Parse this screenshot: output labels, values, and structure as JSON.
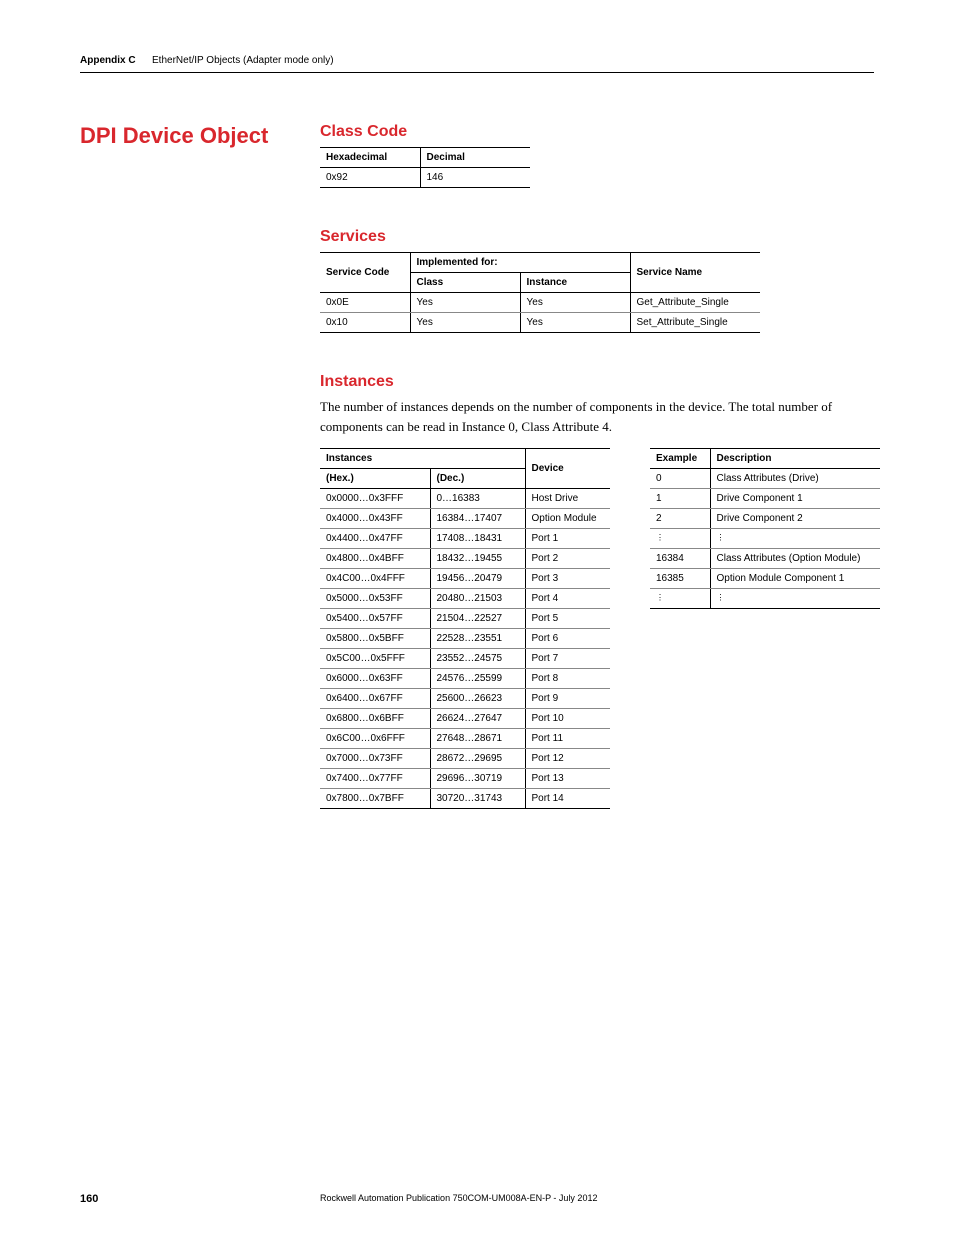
{
  "header": {
    "appendix_label": "Appendix C",
    "appendix_title": "EtherNet/IP Objects (Adapter mode only)"
  },
  "title": "DPI Device Object",
  "class_code": {
    "heading": "Class Code",
    "headers": [
      "Hexadecimal",
      "Decimal"
    ],
    "row": [
      "0x92",
      "146"
    ]
  },
  "services": {
    "heading": "Services",
    "headers": {
      "service_code": "Service Code",
      "implemented_for": "Implemented for:",
      "class": "Class",
      "instance": "Instance",
      "service_name": "Service Name"
    },
    "rows": [
      {
        "code": "0x0E",
        "class": "Yes",
        "instance": "Yes",
        "name": "Get_Attribute_Single"
      },
      {
        "code": "0x10",
        "class": "Yes",
        "instance": "Yes",
        "name": "Set_Attribute_Single"
      }
    ]
  },
  "instances": {
    "heading": "Instances",
    "body_text": "The number of instances depends on the number of components in the device. The total number of components can be read in Instance 0, Class Attribute 4.",
    "table_headers": {
      "instances": "Instances",
      "device": "Device",
      "hex": "(Hex.)",
      "dec": "(Dec.)"
    },
    "rows": [
      {
        "hex": "0x0000…0x3FFF",
        "dec": "0…16383",
        "device": "Host Drive"
      },
      {
        "hex": "0x4000…0x43FF",
        "dec": "16384…17407",
        "device": "Option Module"
      },
      {
        "hex": "0x4400…0x47FF",
        "dec": "17408…18431",
        "device": "Port 1"
      },
      {
        "hex": "0x4800…0x4BFF",
        "dec": "18432…19455",
        "device": "Port 2"
      },
      {
        "hex": "0x4C00…0x4FFF",
        "dec": "19456…20479",
        "device": "Port 3"
      },
      {
        "hex": "0x5000…0x53FF",
        "dec": "20480…21503",
        "device": "Port 4"
      },
      {
        "hex": "0x5400…0x57FF",
        "dec": "21504…22527",
        "device": "Port 5"
      },
      {
        "hex": "0x5800…0x5BFF",
        "dec": "22528…23551",
        "device": "Port 6"
      },
      {
        "hex": "0x5C00…0x5FFF",
        "dec": "23552…24575",
        "device": "Port 7"
      },
      {
        "hex": "0x6000…0x63FF",
        "dec": "24576…25599",
        "device": "Port 8"
      },
      {
        "hex": "0x6400…0x67FF",
        "dec": "25600…26623",
        "device": "Port 9"
      },
      {
        "hex": "0x6800…0x6BFF",
        "dec": "26624…27647",
        "device": "Port 10"
      },
      {
        "hex": "0x6C00…0x6FFF",
        "dec": "27648…28671",
        "device": "Port 11"
      },
      {
        "hex": "0x7000…0x73FF",
        "dec": "28672…29695",
        "device": "Port 12"
      },
      {
        "hex": "0x7400…0x77FF",
        "dec": "29696…30719",
        "device": "Port 13"
      },
      {
        "hex": "0x7800…0x7BFF",
        "dec": "30720…31743",
        "device": "Port 14"
      }
    ],
    "example_headers": {
      "example": "Example",
      "description": "Description"
    },
    "example_rows": [
      {
        "ex": "0",
        "desc": "Class Attributes (Drive)"
      },
      {
        "ex": "1",
        "desc": "Drive Component 1"
      },
      {
        "ex": "2",
        "desc": "Drive Component 2"
      },
      {
        "ex": "⋮",
        "desc": "⋮"
      },
      {
        "ex": "16384",
        "desc": "Class Attributes (Option Module)"
      },
      {
        "ex": "16385",
        "desc": "Option Module Component 1"
      },
      {
        "ex": "⋮",
        "desc": "⋮"
      }
    ]
  },
  "footer": {
    "page": "160",
    "publication": "Rockwell Automation Publication 750COM-UM008A-EN-P - July 2012"
  }
}
